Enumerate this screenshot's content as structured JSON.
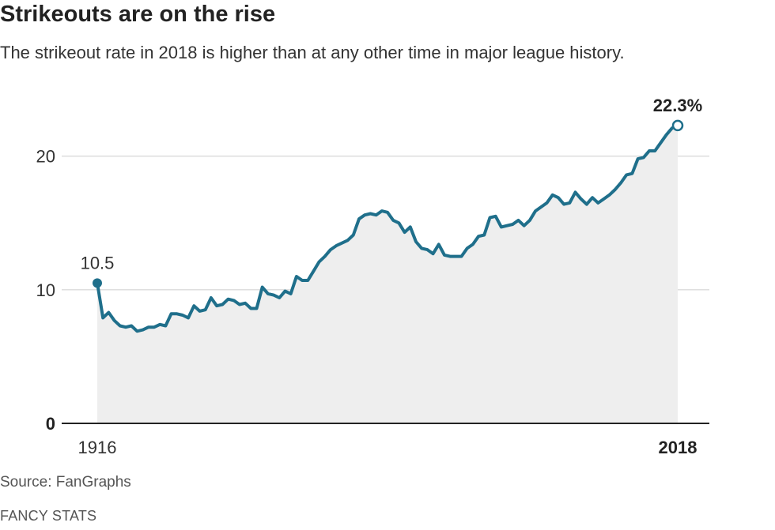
{
  "header": {
    "title": "Strikeouts are on the rise",
    "subtitle": "The strikeout rate in 2018 is higher than at any other time in major league history."
  },
  "footer": {
    "source": "Source: FanGraphs",
    "credit": "FANCY STATS"
  },
  "colors": {
    "line": "#1f6f8b",
    "area": "#eeeeee",
    "grid": "#cccccc",
    "axis": "#222222"
  },
  "chart_data": {
    "type": "area",
    "title": "Strikeouts are on the rise",
    "subtitle": "The strikeout rate in 2018 is higher than at any other time in major league history.",
    "xlabel": "",
    "ylabel": "",
    "xlim": [
      1916,
      2018
    ],
    "ylim": [
      0,
      23
    ],
    "y_ticks": [
      0,
      10,
      20
    ],
    "y_tick_labels": [
      "0",
      "10",
      "20"
    ],
    "x_tick_labels": [
      {
        "year": 1916,
        "label": "1916",
        "bold": false
      },
      {
        "year": 2018,
        "label": "2018",
        "bold": true
      }
    ],
    "grid": true,
    "annotations": [
      {
        "year": 1916,
        "value": 10.5,
        "label": "10.5",
        "marker": "filled"
      },
      {
        "year": 2018,
        "value": 22.3,
        "label": "22.3%",
        "marker": "open"
      }
    ],
    "series": [
      {
        "x": [
          1916,
          1917,
          1918,
          1919,
          1920,
          1921,
          1922,
          1923,
          1924,
          1925,
          1926,
          1927,
          1928,
          1929,
          1930,
          1931,
          1932,
          1933,
          1934,
          1935,
          1936,
          1937,
          1938,
          1939,
          1940,
          1941,
          1942,
          1943,
          1944,
          1945,
          1946,
          1947,
          1948,
          1949,
          1950,
          1951,
          1952,
          1953,
          1954,
          1955,
          1956,
          1957,
          1958,
          1959,
          1960,
          1961,
          1962,
          1963,
          1964,
          1965,
          1966,
          1967,
          1968,
          1969,
          1970,
          1971,
          1972,
          1973,
          1974,
          1975,
          1976,
          1977,
          1978,
          1979,
          1980,
          1981,
          1982,
          1983,
          1984,
          1985,
          1986,
          1987,
          1988,
          1989,
          1990,
          1991,
          1992,
          1993,
          1994,
          1995,
          1996,
          1997,
          1998,
          1999,
          2000,
          2001,
          2002,
          2003,
          2004,
          2005,
          2006,
          2007,
          2008,
          2009,
          2010,
          2011,
          2012,
          2013,
          2014,
          2015,
          2016,
          2017,
          2018
        ],
        "values": [
          10.5,
          7.9,
          8.3,
          7.7,
          7.3,
          7.2,
          7.3,
          6.9,
          7.0,
          7.2,
          7.2,
          7.4,
          7.3,
          8.2,
          8.2,
          8.1,
          7.9,
          8.8,
          8.4,
          8.5,
          9.4,
          8.8,
          8.9,
          9.3,
          9.2,
          8.9,
          9.0,
          8.6,
          8.6,
          10.2,
          9.7,
          9.6,
          9.4,
          9.9,
          9.7,
          11.0,
          10.7,
          10.7,
          11.4,
          12.1,
          12.5,
          13.0,
          13.3,
          13.5,
          13.7,
          14.1,
          15.3,
          15.6,
          15.7,
          15.6,
          15.9,
          15.8,
          15.2,
          15.0,
          14.3,
          14.7,
          13.6,
          13.1,
          13.0,
          12.7,
          13.4,
          12.6,
          12.5,
          12.5,
          12.5,
          13.1,
          13.4,
          14.0,
          14.1,
          15.4,
          15.5,
          14.7,
          14.8,
          14.9,
          15.2,
          14.8,
          15.2,
          15.9,
          16.2,
          16.5,
          17.1,
          16.9,
          16.4,
          16.5,
          17.3,
          16.8,
          16.4,
          16.9,
          16.5,
          16.8,
          17.1,
          17.5,
          18.0,
          18.6,
          18.7,
          19.8,
          19.9,
          20.4,
          20.4,
          21.0,
          21.6,
          22.1,
          22.3
        ]
      }
    ]
  }
}
